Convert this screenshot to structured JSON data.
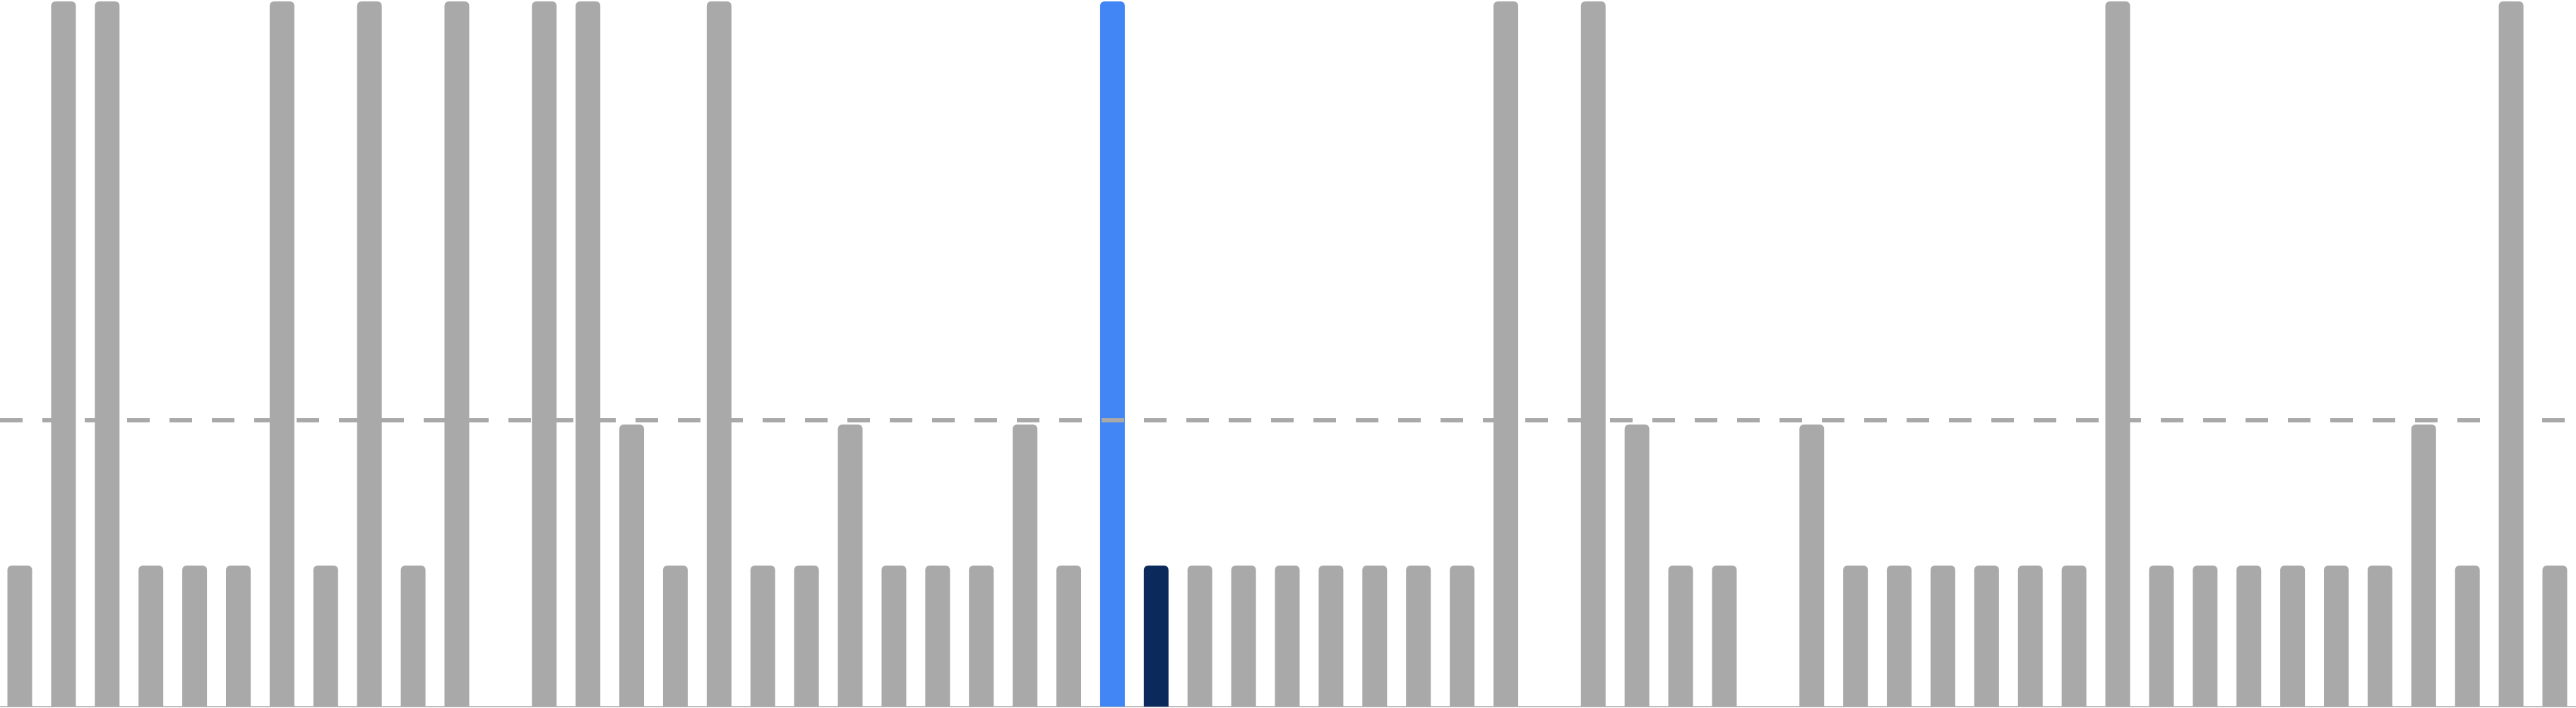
{
  "chart_data": {
    "type": "bar",
    "categories": [
      null,
      null,
      null,
      null,
      null,
      null,
      null,
      null,
      null,
      null,
      null,
      null,
      null,
      null,
      null,
      null,
      null,
      null,
      null,
      null,
      null,
      null,
      null,
      null,
      null,
      null,
      null,
      null,
      null,
      null,
      null,
      null,
      null,
      null,
      null,
      null,
      null,
      null,
      null,
      null,
      null,
      null,
      null,
      null,
      null,
      null,
      null,
      null,
      null,
      null,
      null,
      null,
      null,
      null,
      null,
      null,
      null,
      null,
      null
    ],
    "values": [
      1,
      5,
      5,
      1,
      1,
      1,
      5,
      1,
      5,
      1,
      5,
      null,
      5,
      5,
      2,
      1,
      5,
      1,
      1,
      2,
      1,
      1,
      1,
      2,
      1,
      5,
      1,
      1,
      1,
      1,
      1,
      1,
      1,
      1,
      5,
      null,
      5,
      2,
      1,
      1,
      null,
      2,
      1,
      1,
      1,
      1,
      1,
      1,
      5,
      1,
      1,
      1,
      1,
      1,
      1,
      2,
      1,
      5,
      1
    ],
    "color": "#a9a9a9",
    "colors": [
      "#a9a9a9",
      "#a9a9a9",
      "#a9a9a9",
      "#a9a9a9",
      "#a9a9a9",
      "#a9a9a9",
      "#a9a9a9",
      "#a9a9a9",
      "#a9a9a9",
      "#a9a9a9",
      "#a9a9a9",
      "#a9a9a9",
      "#a9a9a9",
      "#a9a9a9",
      "#a9a9a9",
      "#a9a9a9",
      "#a9a9a9",
      "#a9a9a9",
      "#a9a9a9",
      "#a9a9a9",
      "#a9a9a9",
      "#a9a9a9",
      "#a9a9a9",
      "#a9a9a9",
      "#a9a9a9",
      "#4285f4",
      "#0b2a5b",
      "#a9a9a9",
      "#a9a9a9",
      "#a9a9a9",
      "#a9a9a9",
      "#a9a9a9",
      "#a9a9a9",
      "#a9a9a9",
      "#a9a9a9",
      "#a9a9a9",
      "#a9a9a9",
      "#a9a9a9",
      "#a9a9a9",
      "#a9a9a9",
      "#a9a9a9",
      "#a9a9a9",
      "#a9a9a9",
      "#a9a9a9",
      "#a9a9a9",
      "#a9a9a9",
      "#a9a9a9",
      "#a9a9a9",
      "#a9a9a9",
      "#a9a9a9",
      "#a9a9a9",
      "#a9a9a9",
      "#a9a9a9",
      "#a9a9a9",
      "#a9a9a9",
      "#a9a9a9",
      "#a9a9a9",
      "#a9a9a9",
      "#a9a9a9"
    ],
    "ylim": [
      0,
      5
    ],
    "reference_line": 2.03,
    "reference_color": "#a9a9a9"
  }
}
